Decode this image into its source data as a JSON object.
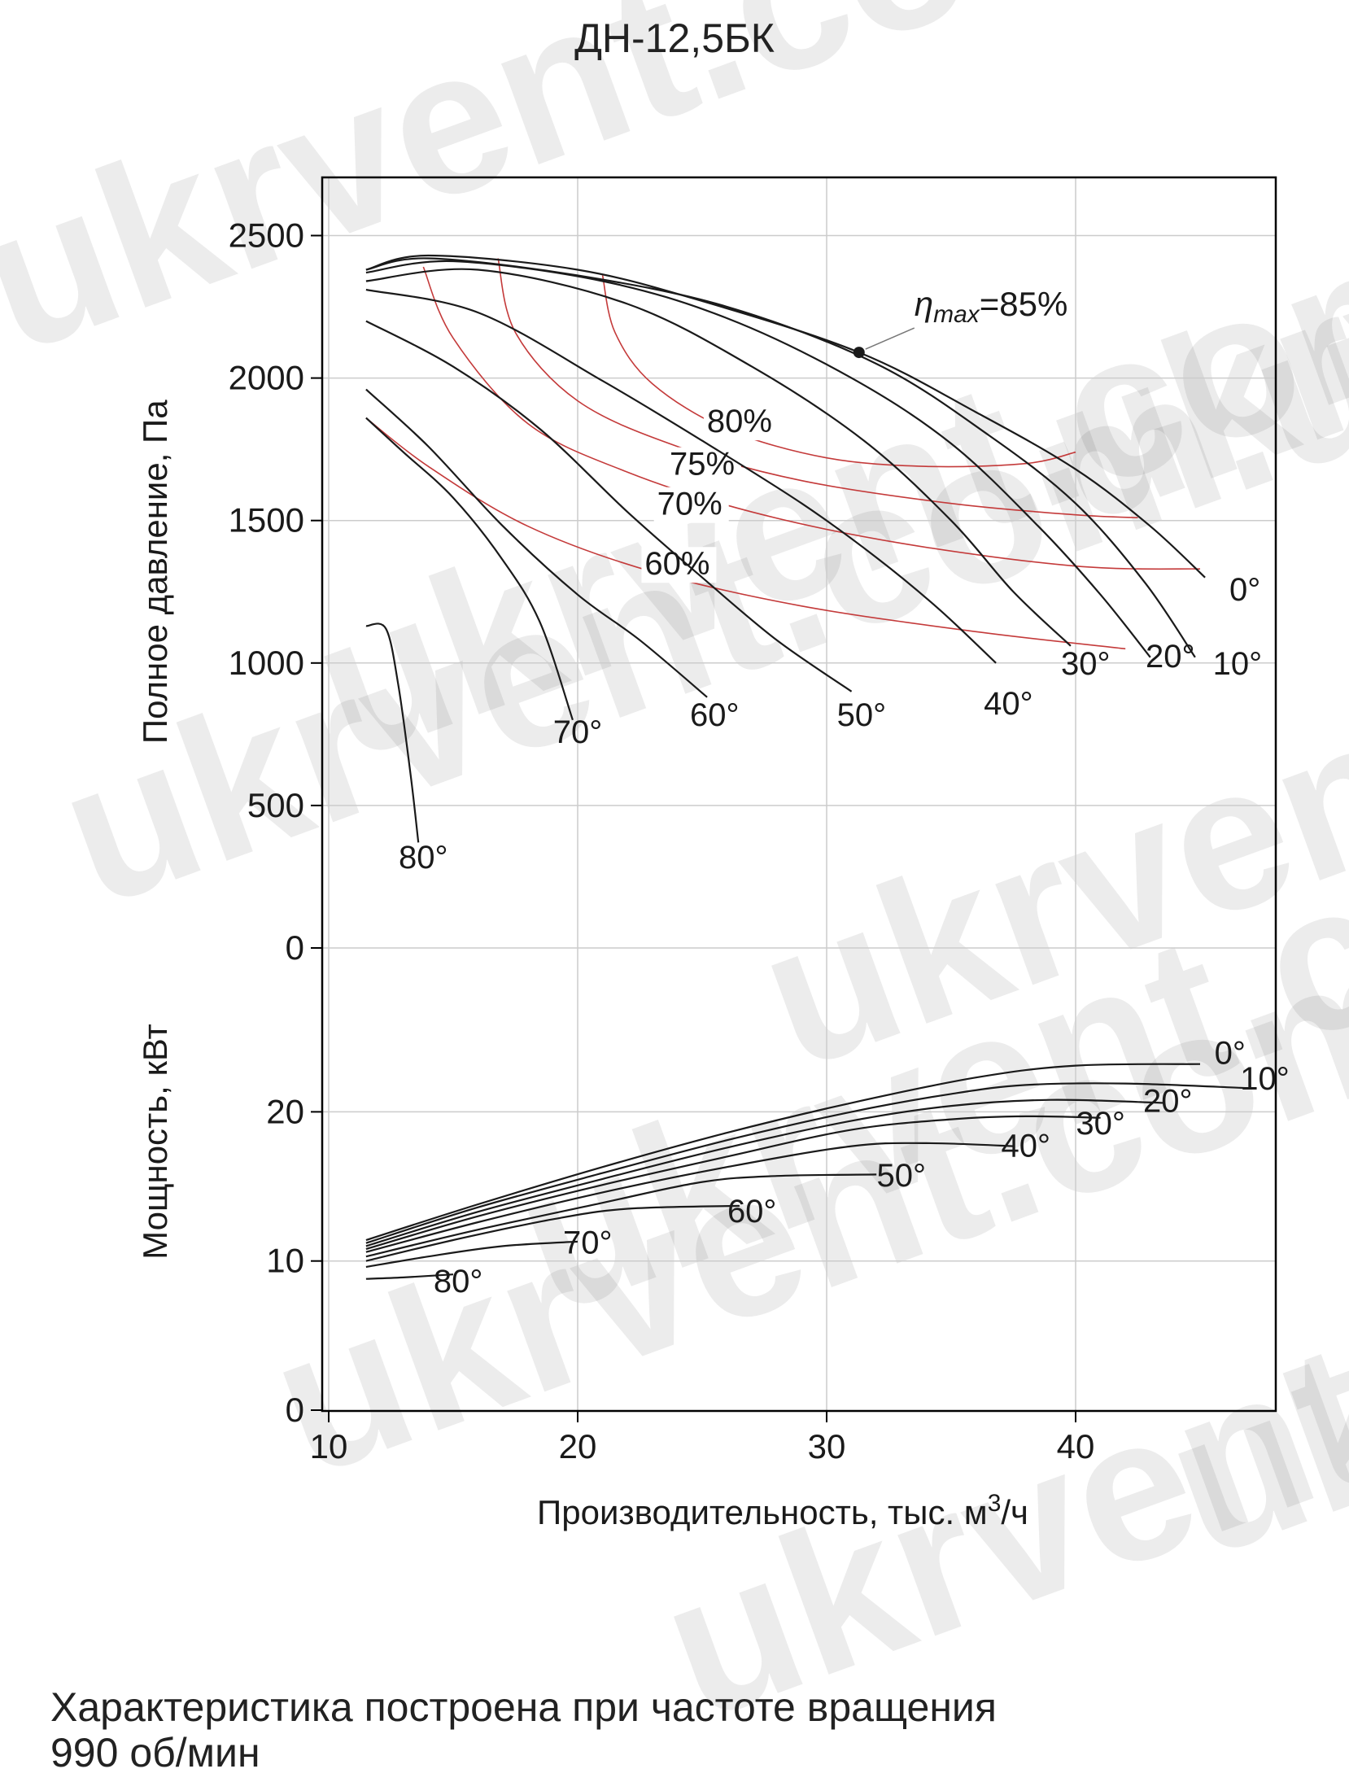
{
  "title": "ДН-12,5БК",
  "caption_line1": "Характеристика построена при частоте вращения",
  "caption_line2": "990 об/мин",
  "watermark_text": "ukrvent.com.ua",
  "colors": {
    "curve": "#1a1a1a",
    "efficiency": "#c43a3a",
    "grid": "#cccccc",
    "frame": "#000000"
  },
  "chart_data": [
    {
      "type": "line",
      "name": "pressure",
      "ylabel": "Полное давление, Па",
      "xlim": [
        10,
        48.5
      ],
      "ylim": [
        0,
        2700
      ],
      "yticks": [
        "0",
        "500",
        "1000",
        "1500",
        "2000",
        "2500"
      ],
      "grid": true,
      "annotation": {
        "label": "=85%",
        "symbol": "η",
        "subscript": "max",
        "point": [
          31.3,
          2090
        ]
      },
      "series": [
        {
          "name": "0°",
          "points": [
            [
              11.5,
              2380
            ],
            [
              14,
              2430
            ],
            [
              20,
              2380
            ],
            [
              25,
              2270
            ],
            [
              31.3,
              2090
            ],
            [
              36,
              1880
            ],
            [
              40,
              1680
            ],
            [
              43,
              1480
            ],
            [
              45.2,
              1300
            ]
          ]
        },
        {
          "name": "10°",
          "points": [
            [
              11.5,
              2380
            ],
            [
              14,
              2420
            ],
            [
              20,
              2360
            ],
            [
              26,
              2250
            ],
            [
              32,
              2050
            ],
            [
              36.5,
              1800
            ],
            [
              40,
              1560
            ],
            [
              42.8,
              1280
            ],
            [
              44.8,
              1020
            ]
          ]
        },
        {
          "name": "20°",
          "points": [
            [
              11.5,
              2370
            ],
            [
              15,
              2410
            ],
            [
              21,
              2340
            ],
            [
              26,
              2210
            ],
            [
              31,
              2000
            ],
            [
              35,
              1770
            ],
            [
              38.5,
              1480
            ],
            [
              41,
              1240
            ],
            [
              43,
              1020
            ]
          ]
        },
        {
          "name": "30°",
          "points": [
            [
              11.5,
              2340
            ],
            [
              16,
              2380
            ],
            [
              22,
              2260
            ],
            [
              27,
              2040
            ],
            [
              31.5,
              1780
            ],
            [
              35,
              1500
            ],
            [
              37.5,
              1250
            ],
            [
              39.8,
              1060
            ]
          ]
        },
        {
          "name": "40°",
          "points": [
            [
              11.5,
              2310
            ],
            [
              16,
              2230
            ],
            [
              21,
              1990
            ],
            [
              25,
              1780
            ],
            [
              29,
              1560
            ],
            [
              32,
              1370
            ],
            [
              34.5,
              1190
            ],
            [
              36.8,
              1000
            ]
          ]
        },
        {
          "name": "50°",
          "points": [
            [
              11.5,
              2200
            ],
            [
              15,
              2040
            ],
            [
              18.5,
              1820
            ],
            [
              22,
              1530
            ],
            [
              25,
              1300
            ],
            [
              28,
              1080
            ],
            [
              31,
              900
            ]
          ]
        },
        {
          "name": "60°",
          "points": [
            [
              11.5,
              1960
            ],
            [
              14,
              1760
            ],
            [
              17,
              1480
            ],
            [
              20,
              1240
            ],
            [
              22.5,
              1080
            ],
            [
              25.2,
              880
            ]
          ]
        },
        {
          "name": "70°",
          "points": [
            [
              11.5,
              1860
            ],
            [
              13,
              1740
            ],
            [
              15,
              1580
            ],
            [
              17,
              1360
            ],
            [
              18.5,
              1140
            ],
            [
              19.8,
              800
            ]
          ]
        },
        {
          "name": "80°",
          "points": [
            [
              11.5,
              1130
            ],
            [
              12.3,
              1120
            ],
            [
              12.8,
              920
            ],
            [
              13.3,
              600
            ],
            [
              13.6,
              370
            ]
          ]
        }
      ],
      "efficiency_curves": [
        {
          "name": "80%",
          "points": [
            [
              21,
              2360
            ],
            [
              21.5,
              2160
            ],
            [
              23,
              1980
            ],
            [
              26,
              1820
            ],
            [
              30,
              1720
            ],
            [
              34,
              1690
            ],
            [
              38,
              1700
            ],
            [
              40,
              1740
            ]
          ]
        },
        {
          "name": "75%",
          "points": [
            [
              16.8,
              2420
            ],
            [
              17.5,
              2160
            ],
            [
              20,
              1920
            ],
            [
              24,
              1760
            ],
            [
              29,
              1640
            ],
            [
              35,
              1560
            ],
            [
              40,
              1520
            ],
            [
              42.5,
              1510
            ]
          ]
        },
        {
          "name": "70%",
          "points": [
            [
              13.8,
              2390
            ],
            [
              15,
              2140
            ],
            [
              18,
              1840
            ],
            [
              22,
              1670
            ],
            [
              27,
              1530
            ],
            [
              33,
              1420
            ],
            [
              40,
              1340
            ],
            [
              45,
              1330
            ]
          ]
        },
        {
          "name": "60%",
          "points": [
            [
              11.5,
              1860
            ],
            [
              14,
              1690
            ],
            [
              18,
              1480
            ],
            [
              23,
              1320
            ],
            [
              29,
              1200
            ],
            [
              36,
              1110
            ],
            [
              42,
              1050
            ]
          ]
        }
      ],
      "efficiency_label_anchors": {
        "80%": [
          26.5,
          1810
        ],
        "75%": [
          25,
          1660
        ],
        "70%": [
          24.5,
          1520
        ],
        "60%": [
          24,
          1310
        ]
      },
      "angle_label_anchors": {
        "0°": [
          46.8,
          1220
        ],
        "10°": [
          46.5,
          960
        ],
        "20°": [
          43.8,
          985
        ],
        "30°": [
          40.4,
          960
        ],
        "40°": [
          37.3,
          820
        ],
        "50°": [
          31.4,
          780
        ],
        "60°": [
          25.5,
          780
        ],
        "70°": [
          20,
          720
        ],
        "80°": [
          13.8,
          280
        ]
      }
    },
    {
      "type": "line",
      "name": "power",
      "xlabel": "Производительность, тыс. м³/ч",
      "xlabel_main": "Производительность, тыс. м",
      "xlabel_sup": "3",
      "xlabel_tail": "/ч",
      "ylabel": "Мощность, кВт",
      "xlim": [
        10,
        48.5
      ],
      "ylim": [
        0,
        28
      ],
      "xticks": [
        "10",
        "20",
        "30",
        "40"
      ],
      "yticks": [
        "0",
        "10",
        "20"
      ],
      "grid": true,
      "series": [
        {
          "name": "0°",
          "points": [
            [
              11.5,
              11.4
            ],
            [
              16,
              13.8
            ],
            [
              21,
              16.3
            ],
            [
              26,
              18.6
            ],
            [
              31,
              20.6
            ],
            [
              36,
              22.3
            ],
            [
              40,
              23.1
            ],
            [
              45,
              23.2
            ]
          ]
        },
        {
          "name": "10°",
          "points": [
            [
              11.5,
              11.2
            ],
            [
              16,
              13.6
            ],
            [
              21,
              15.9
            ],
            [
              26,
              18.1
            ],
            [
              31,
              20.0
            ],
            [
              35,
              21.2
            ],
            [
              38,
              21.8
            ],
            [
              42,
              21.9
            ],
            [
              46.8,
              21.6
            ]
          ]
        },
        {
          "name": "20°",
          "points": [
            [
              11.5,
              11.0
            ],
            [
              16,
              13.3
            ],
            [
              21,
              15.5
            ],
            [
              26,
              17.6
            ],
            [
              31,
              19.4
            ],
            [
              35,
              20.4
            ],
            [
              39,
              20.8
            ],
            [
              43.5,
              20.6
            ]
          ]
        },
        {
          "name": "30°",
          "points": [
            [
              11.5,
              10.8
            ],
            [
              16,
              13.0
            ],
            [
              21,
              15.1
            ],
            [
              26,
              17.0
            ],
            [
              31,
              18.8
            ],
            [
              35,
              19.5
            ],
            [
              38,
              19.7
            ],
            [
              41,
              19.6
            ]
          ]
        },
        {
          "name": "40°",
          "points": [
            [
              11.5,
              10.6
            ],
            [
              16,
              12.6
            ],
            [
              21,
              14.6
            ],
            [
              26,
              16.3
            ],
            [
              31,
              17.7
            ],
            [
              34,
              17.9
            ],
            [
              37.5,
              17.7
            ]
          ]
        },
        {
          "name": "50°",
          "points": [
            [
              11.5,
              10.3
            ],
            [
              16,
              12.1
            ],
            [
              21,
              13.9
            ],
            [
              25,
              15.3
            ],
            [
              28,
              15.7
            ],
            [
              32,
              15.8
            ]
          ]
        },
        {
          "name": "60°",
          "points": [
            [
              11.5,
              10.0
            ],
            [
              15,
              11.4
            ],
            [
              19,
              12.8
            ],
            [
              22,
              13.5
            ],
            [
              26.5,
              13.7
            ]
          ]
        },
        {
          "name": "70°",
          "points": [
            [
              11.5,
              9.6
            ],
            [
              14,
              10.3
            ],
            [
              17,
              11.0
            ],
            [
              20,
              11.3
            ]
          ]
        },
        {
          "name": "80°",
          "points": [
            [
              11.5,
              8.8
            ],
            [
              13,
              8.9
            ],
            [
              15,
              9.1
            ]
          ]
        }
      ],
      "angle_label_anchors": {
        "0°": [
          46.2,
          23.2
        ],
        "10°": [
          47.6,
          21.5
        ],
        "20°": [
          43.7,
          20.0
        ],
        "30°": [
          41,
          18.5
        ],
        "40°": [
          38,
          17.0
        ],
        "50°": [
          33,
          15.0
        ],
        "60°": [
          27,
          12.6
        ],
        "70°": [
          20.4,
          10.5
        ],
        "80°": [
          15.2,
          7.9
        ]
      }
    }
  ]
}
